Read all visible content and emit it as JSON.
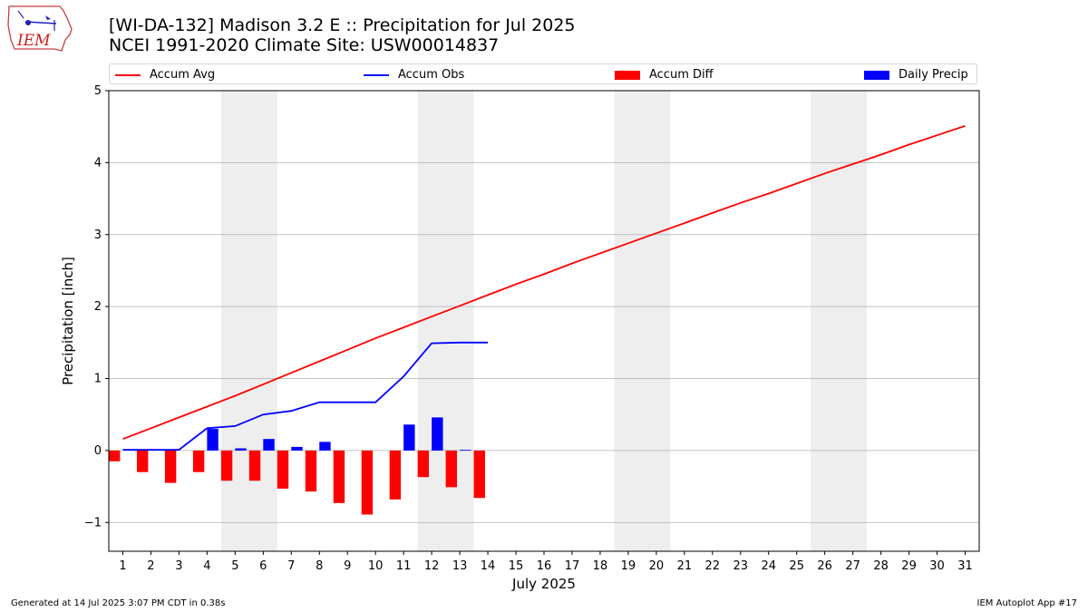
{
  "title": "[WI-DA-132] Madison 3.2 E :: Precipitation for Jul 2025",
  "subtitle": "NCEI 1991-2020 Climate Site: USW00014837",
  "logo_text": "IEM",
  "footer_left": "Generated at 14 Jul 2025 3:07 PM CDT in 0.38s",
  "footer_right": "IEM Autoplot App #17",
  "colors": {
    "accum_avg": "#ff0000",
    "accum_obs": "#0000ff",
    "accum_diff": "#ff0000",
    "daily_precip": "#0000ff",
    "weekend_shade": "#eeeeee",
    "grid": "#b0b0b0"
  },
  "legend": [
    {
      "label": "Accum Avg",
      "kind": "line",
      "color": "#ff0000"
    },
    {
      "label": "Accum Obs",
      "kind": "line",
      "color": "#0000ff"
    },
    {
      "label": "Accum Diff",
      "kind": "patch",
      "color": "#ff0000"
    },
    {
      "label": "Daily Precip",
      "kind": "patch",
      "color": "#0000ff"
    }
  ],
  "chart_data": {
    "type": "bar",
    "title": "[WI-DA-132] Madison 3.2 E :: Precipitation for Jul 2025",
    "subtitle": "NCEI 1991-2020 Climate Site: USW00014837",
    "xlabel": "July 2025",
    "ylabel": "Precipitation [inch]",
    "xlim": [
      0.5,
      31.5
    ],
    "ylim": [
      -1.4,
      5.0
    ],
    "x_ticks": [
      1,
      2,
      3,
      4,
      5,
      6,
      7,
      8,
      9,
      10,
      11,
      12,
      13,
      14,
      15,
      16,
      17,
      18,
      19,
      20,
      21,
      22,
      23,
      24,
      25,
      26,
      27,
      28,
      29,
      30,
      31
    ],
    "y_ticks": [
      -1,
      0,
      1,
      2,
      3,
      4,
      5
    ],
    "y_tick_labels": [
      "−1",
      "0",
      "1",
      "2",
      "3",
      "4",
      "5"
    ],
    "grid": "horizontal",
    "legend_position": "top",
    "weekend_spans": [
      [
        4.5,
        6.5
      ],
      [
        11.5,
        13.5
      ],
      [
        18.5,
        20.5
      ],
      [
        25.5,
        27.5
      ]
    ],
    "series": [
      {
        "name": "Accum Avg",
        "type": "line",
        "x": [
          1,
          2,
          3,
          4,
          5,
          6,
          7,
          8,
          9,
          10,
          11,
          12,
          13,
          14,
          15,
          16,
          17,
          18,
          19,
          20,
          21,
          22,
          23,
          24,
          25,
          26,
          27,
          28,
          29,
          30,
          31
        ],
        "values": [
          0.16,
          0.31,
          0.46,
          0.61,
          0.76,
          0.92,
          1.08,
          1.24,
          1.4,
          1.56,
          1.71,
          1.86,
          2.01,
          2.16,
          2.31,
          2.45,
          2.6,
          2.74,
          2.88,
          3.02,
          3.16,
          3.3,
          3.44,
          3.57,
          3.71,
          3.85,
          3.98,
          4.11,
          4.25,
          4.38,
          4.51
        ]
      },
      {
        "name": "Accum Obs",
        "type": "line",
        "x": [
          1,
          2,
          3,
          4,
          5,
          6,
          7,
          8,
          9,
          10,
          11,
          12,
          13,
          14
        ],
        "values": [
          0.01,
          0.01,
          0.01,
          0.31,
          0.34,
          0.5,
          0.55,
          0.67,
          0.67,
          0.67,
          1.03,
          1.49,
          1.5,
          1.5
        ]
      },
      {
        "name": "Accum Diff",
        "type": "bar",
        "x": [
          1,
          2,
          3,
          4,
          5,
          6,
          7,
          8,
          9,
          10,
          11,
          12,
          13,
          14
        ],
        "values": [
          -0.15,
          -0.3,
          -0.45,
          -0.3,
          -0.42,
          -0.42,
          -0.53,
          -0.57,
          -0.73,
          -0.89,
          -0.68,
          -0.37,
          -0.51,
          -0.66
        ]
      },
      {
        "name": "Daily Precip",
        "type": "bar",
        "x": [
          1,
          2,
          3,
          4,
          5,
          6,
          7,
          8,
          9,
          10,
          11,
          12,
          13,
          14
        ],
        "values": [
          0.01,
          0.0,
          0.0,
          0.3,
          0.03,
          0.16,
          0.05,
          0.12,
          0.0,
          0.0,
          0.36,
          0.46,
          0.01,
          0.0
        ]
      }
    ]
  }
}
